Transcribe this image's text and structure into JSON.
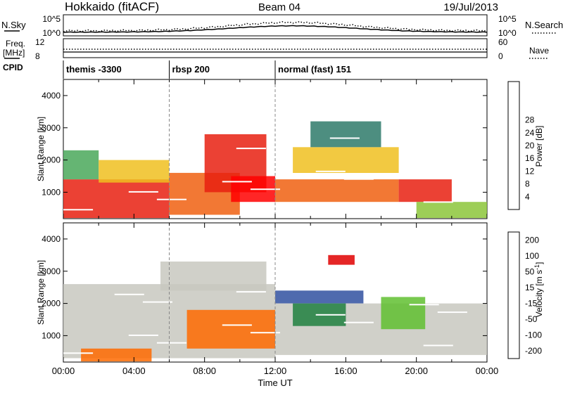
{
  "header": {
    "station": "Hokkaido (fitACF)",
    "beam": "Beam 04",
    "date": "19/Jul/2013"
  },
  "top_strips": {
    "nsky_label": "N.Sky",
    "nsky_ticks": [
      "10^5",
      "10^0"
    ],
    "nsearch_label": "N.Search",
    "nsearch_ticks": [
      "10^5",
      "10^0"
    ],
    "freq_label": "Freq.",
    "freq_unit": "[MHz]",
    "freq_ticks": [
      "12",
      "8"
    ],
    "nave_label": "Nave",
    "nave_ticks": [
      "60",
      "0"
    ],
    "cpid_label": "CPID",
    "cpid_segments": [
      {
        "label": "themis -3300",
        "start_hour": 0
      },
      {
        "label": "rbsp 200",
        "start_hour": 6
      },
      {
        "label": "normal (fast) 151",
        "start_hour": 12
      }
    ]
  },
  "x_axis": {
    "title": "Time UT",
    "ticks": [
      "00:00",
      "04:00",
      "08:00",
      "12:00",
      "16:00",
      "20:00",
      "00:00"
    ]
  },
  "colors": {
    "power": [
      "#0020ff",
      "#2255cc",
      "#2e7a6a",
      "#4aa85a",
      "#8cc63a",
      "#f0c020",
      "#f59a10",
      "#f06010",
      "#e82010",
      "#ff0000"
    ],
    "velocity": [
      "#e00000",
      "#ff6a00",
      "#ffa020",
      "#c8c8c0",
      "#c8c8c0",
      "#60c030",
      "#208040",
      "#3050a0",
      "#0000cc"
    ]
  },
  "chart_data": [
    {
      "type": "heatmap",
      "name": "power",
      "ylabel": "Slant Range [km]",
      "xlabel": "",
      "xlim": [
        0,
        24
      ],
      "ylim": [
        180,
        4500
      ],
      "y_ticks": [
        1000,
        2000,
        3000,
        4000
      ],
      "colorbar_label": "Power [dB]",
      "colorbar_ticks": [
        "4",
        "8",
        "12",
        "16",
        "20",
        "24",
        "28"
      ],
      "color_range": [
        0,
        30
      ],
      "regions": [
        {
          "x": [
            0.0,
            6.0
          ],
          "y": [
            200,
            1400
          ],
          "value": 26
        },
        {
          "x": [
            0.0,
            2.0
          ],
          "y": [
            1400,
            2300
          ],
          "value": 10
        },
        {
          "x": [
            2.0,
            6.0
          ],
          "y": [
            1300,
            2000
          ],
          "value": 16
        },
        {
          "x": [
            6.0,
            10.0
          ],
          "y": [
            300,
            1600
          ],
          "value": 22
        },
        {
          "x": [
            8.0,
            11.5
          ],
          "y": [
            1000,
            2800
          ],
          "value": 24
        },
        {
          "x": [
            9.5,
            12.0
          ],
          "y": [
            700,
            1500
          ],
          "value": 28
        },
        {
          "x": [
            12.0,
            19.0
          ],
          "y": [
            700,
            1400
          ],
          "value": 22
        },
        {
          "x": [
            13.0,
            19.0
          ],
          "y": [
            1600,
            2400
          ],
          "value": 17
        },
        {
          "x": [
            14.0,
            18.0
          ],
          "y": [
            2400,
            3200
          ],
          "value": 8
        },
        {
          "x": [
            19.0,
            22.0
          ],
          "y": [
            700,
            1400
          ],
          "value": 24
        },
        {
          "x": [
            20.0,
            24.0
          ],
          "y": [
            200,
            700
          ],
          "value": 12
        }
      ]
    },
    {
      "type": "heatmap",
      "name": "velocity",
      "ylabel": "Slant Range [km]",
      "xlabel": "Time UT",
      "xlim": [
        0,
        24
      ],
      "ylim": [
        180,
        4500
      ],
      "y_ticks": [
        1000,
        2000,
        3000,
        4000
      ],
      "colorbar_label": "Velocity [m s^-1]",
      "colorbar_ticks": [
        "200",
        "100",
        "50",
        "15",
        "-15",
        "-50",
        "-100",
        "-200"
      ],
      "color_range": [
        -250,
        250
      ],
      "regions": [
        {
          "x": [
            0.0,
            12.0
          ],
          "y": [
            300,
            2600
          ],
          "value": 0
        },
        {
          "x": [
            1.0,
            5.0
          ],
          "y": [
            200,
            600
          ],
          "value": -60
        },
        {
          "x": [
            7.0,
            12.0
          ],
          "y": [
            600,
            1800
          ],
          "value": -50
        },
        {
          "x": [
            5.5,
            11.5
          ],
          "y": [
            2400,
            3300
          ],
          "value": 0
        },
        {
          "x": [
            12.0,
            17.0
          ],
          "y": [
            2000,
            2400
          ],
          "value": 200
        },
        {
          "x": [
            12.0,
            24.0
          ],
          "y": [
            400,
            2000
          ],
          "value": 0
        },
        {
          "x": [
            13.0,
            16.0
          ],
          "y": [
            1300,
            2000
          ],
          "value": 60
        },
        {
          "x": [
            18.0,
            20.5
          ],
          "y": [
            1200,
            2200
          ],
          "value": 40
        },
        {
          "x": [
            15.0,
            16.5
          ],
          "y": [
            3200,
            3500
          ],
          "value": -150
        }
      ]
    }
  ]
}
